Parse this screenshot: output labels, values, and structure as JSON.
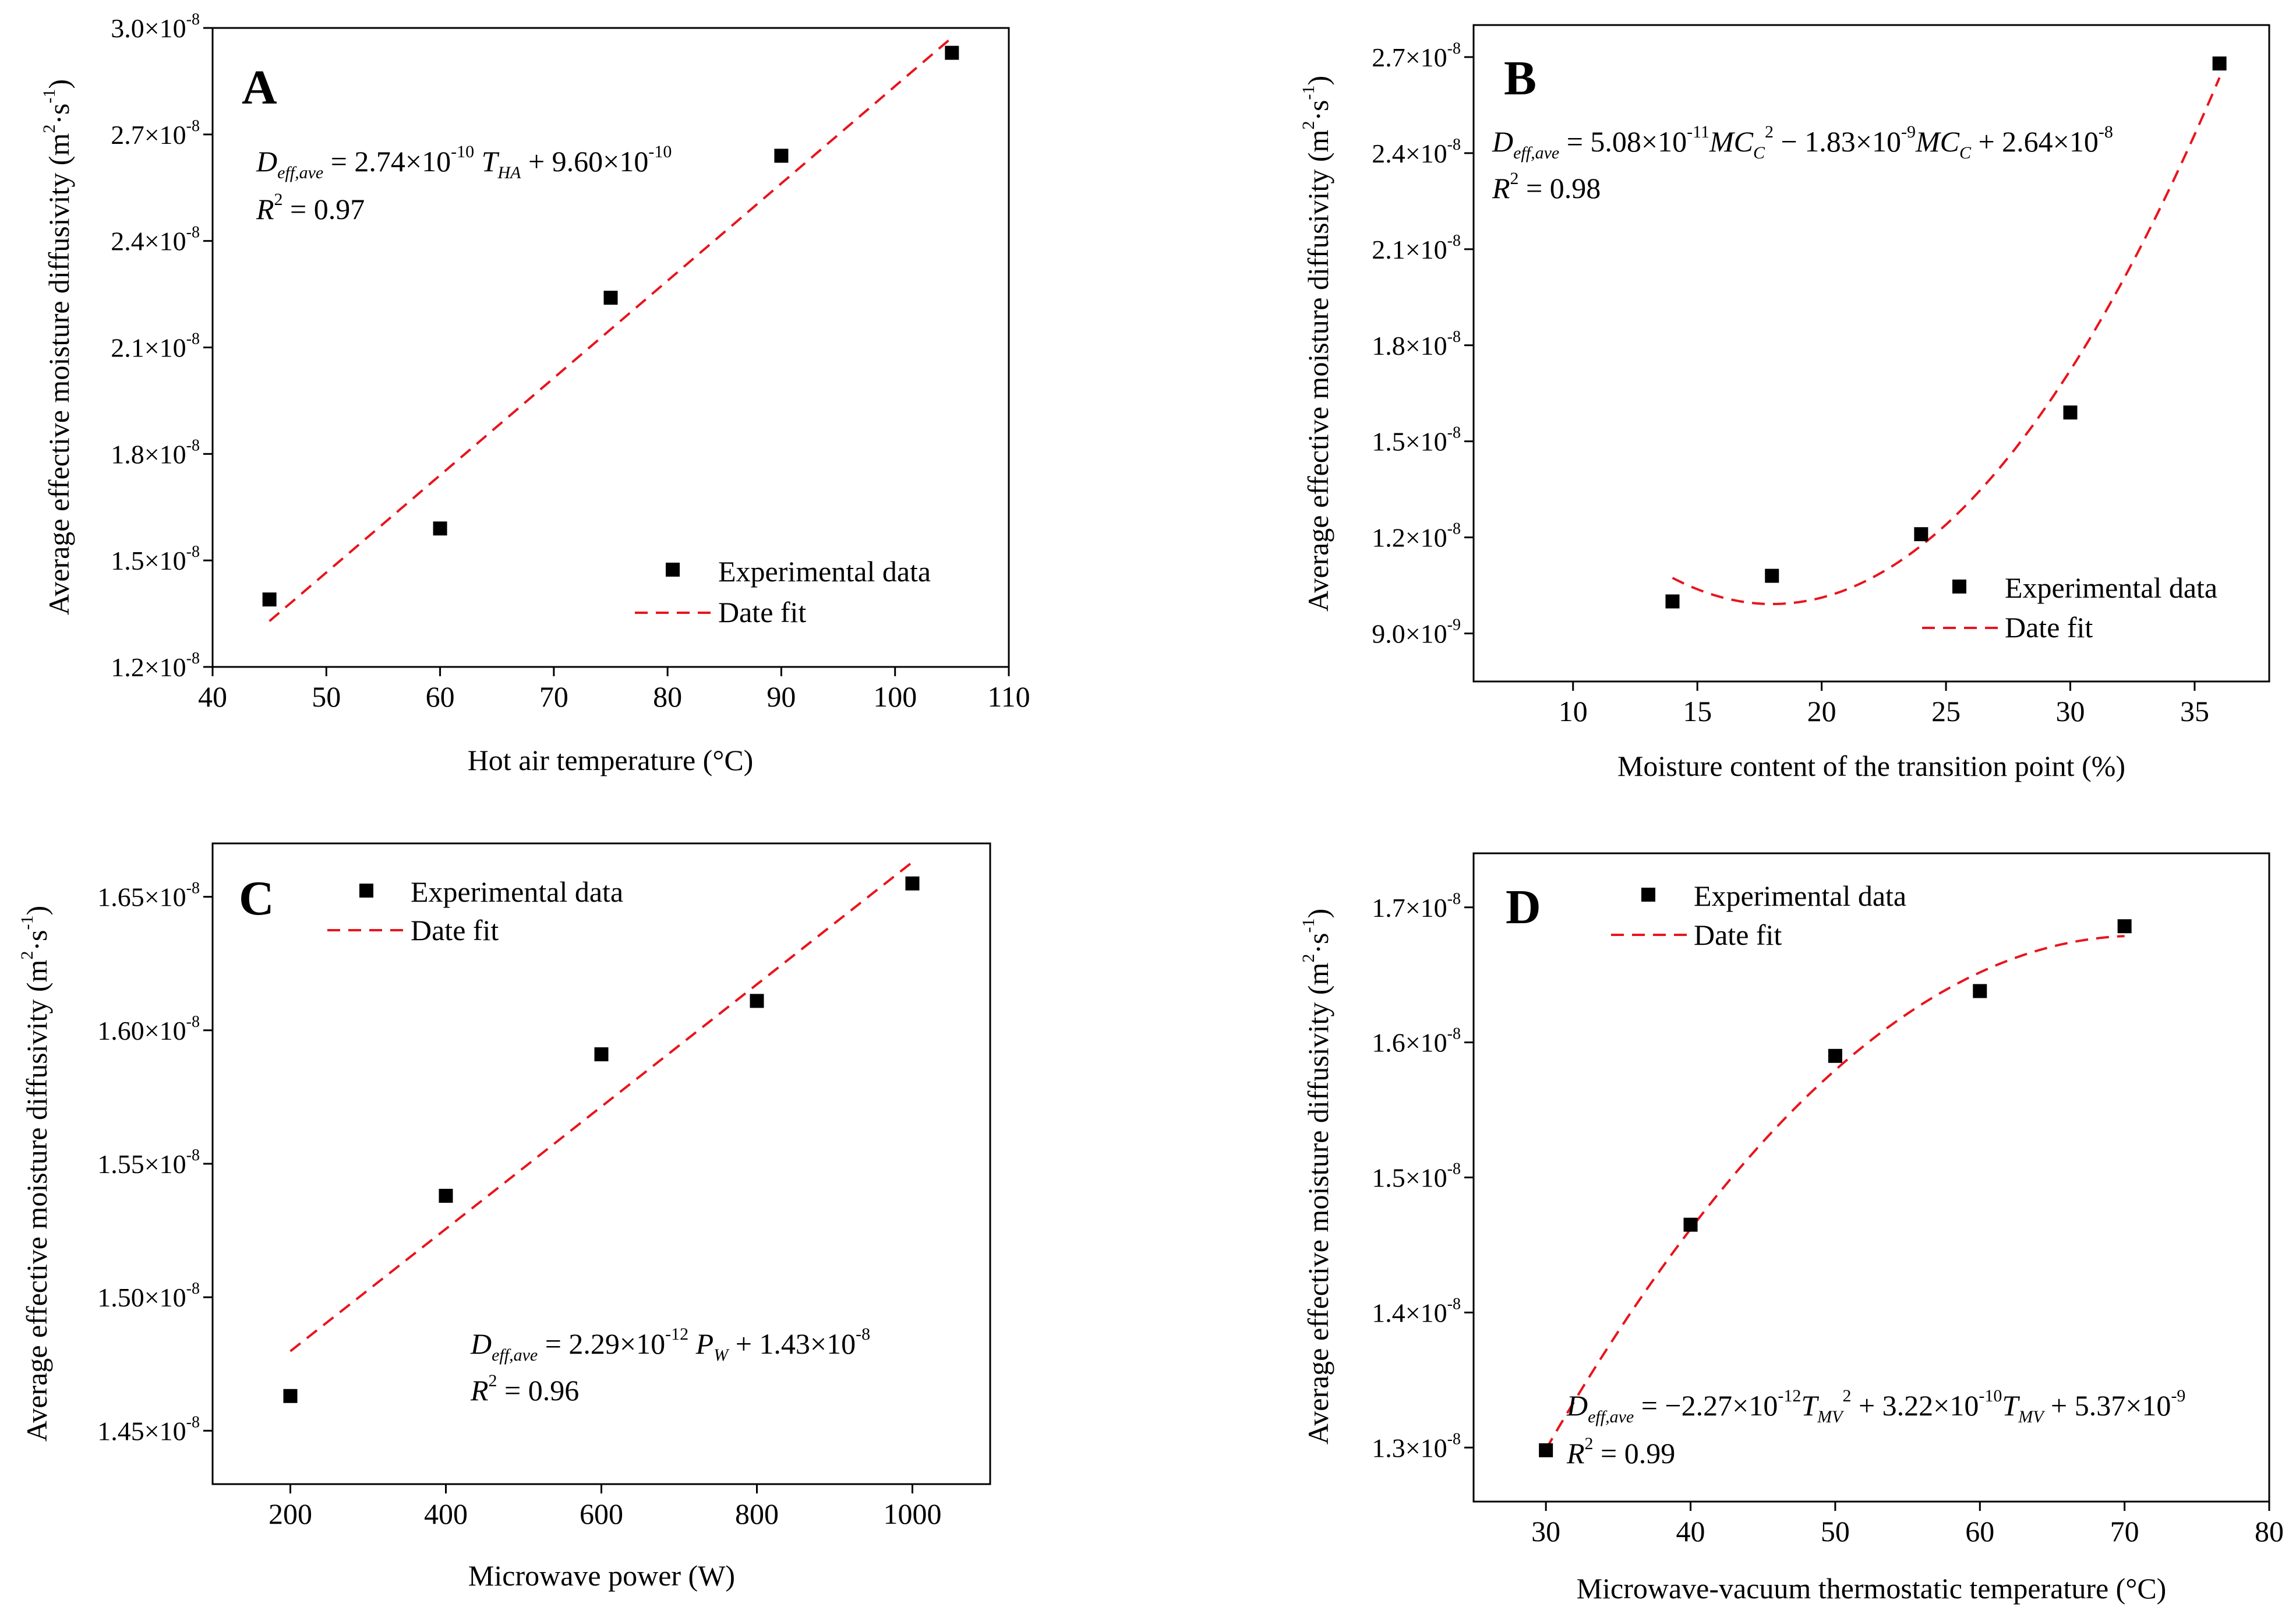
{
  "chart_data": [
    {
      "panel": "A",
      "type": "scatter",
      "title": "A",
      "xlabel": "Hot air temperature (°C)",
      "ylabel": "Average effective moisture diffusivity (m2·s-1)",
      "xlim": [
        40,
        110
      ],
      "ylim": [
        1.2e-08,
        3e-08
      ],
      "xticks": [
        "40",
        "50",
        "60",
        "70",
        "80",
        "90",
        "100",
        "110"
      ],
      "yticks": [
        "1.2×10-8",
        "1.5×10-8",
        "1.8×10-8",
        "2.1×10-8",
        "2.4×10-8",
        "2.7×10-8",
        "3.0×10-8"
      ],
      "series": [
        {
          "name": "Experimental data",
          "x": [
            45,
            60,
            75,
            90,
            105
          ],
          "y": [
            1.39e-08,
            1.59e-08,
            2.24e-08,
            2.64e-08,
            2.93e-08
          ]
        },
        {
          "name": "Date fit",
          "fit": "linear",
          "coef": [
            2.74e-10,
            9.6e-10
          ],
          "xrange": [
            45,
            105
          ]
        }
      ],
      "legend": "bottom-right",
      "equation": "Deff,ave = 2.74×10-10 THA + 9.60×10-10",
      "r2": "R2 = 0.97"
    },
    {
      "panel": "B",
      "type": "scatter",
      "title": "B",
      "xlabel": "Moisture content of the transition point (%)",
      "ylabel": "Average effective moisture diffusivity (m2·s-1)",
      "xlim": [
        6,
        38
      ],
      "ylim": [
        7.5e-09,
        2.8e-08
      ],
      "xticks": [
        "10",
        "15",
        "20",
        "25",
        "30",
        "35"
      ],
      "yticks": [
        "9.0×10-9",
        "1.2×10-8",
        "1.5×10-8",
        "1.8×10-8",
        "2.1×10-8",
        "2.4×10-8",
        "2.7×10-8"
      ],
      "series": [
        {
          "name": "Experimental data",
          "x": [
            14,
            18,
            24,
            30,
            36
          ],
          "y": [
            1e-08,
            1.08e-08,
            1.21e-08,
            1.59e-08,
            2.68e-08
          ]
        },
        {
          "name": "Date fit",
          "fit": "quadratic",
          "coef": [
            5.08e-11,
            -1.83e-09,
            2.64e-08
          ],
          "xrange": [
            14,
            36
          ]
        }
      ],
      "legend": "bottom-right",
      "equation": "Deff,ave = 5.08×10-11MCC2 − 1.83×10-9MCC + 2.64×10-8",
      "r2": "R2 = 0.98"
    },
    {
      "panel": "C",
      "type": "scatter",
      "title": "C",
      "xlabel": "Microwave power (W)",
      "ylabel": "Average effective moisture diffusivity (m2·s-1)",
      "xlim": [
        100,
        1100
      ],
      "ylim": [
        1.43e-08,
        1.67e-08
      ],
      "xticks": [
        "200",
        "400",
        "600",
        "800",
        "1000"
      ],
      "yticks": [
        "1.45×10-8",
        "1.50×10-8",
        "1.55×10-8",
        "1.60×10-8",
        "1.65×10-8"
      ],
      "series": [
        {
          "name": "Experimental data",
          "x": [
            200,
            400,
            600,
            800,
            1000
          ],
          "y": [
            1.463e-08,
            1.538e-08,
            1.591e-08,
            1.611e-08,
            1.655e-08
          ]
        },
        {
          "name": "Date fit",
          "fit": "linear",
          "coef": [
            2.29e-12,
            1.434e-08
          ],
          "xrange": [
            200,
            1000
          ]
        }
      ],
      "legend": "top-left",
      "equation": "Deff,ave = 2.29×10-12 PW + 1.43×10-8",
      "r2": "R2 = 0.96"
    },
    {
      "panel": "D",
      "type": "scatter",
      "title": "D",
      "xlabel": "Microwave-vacuum thermostatic temperature (°C)",
      "ylabel": "Average effective moisture diffusivity (m2·s-1)",
      "xlim": [
        25,
        80
      ],
      "ylim": [
        1.26e-08,
        1.74e-08
      ],
      "xticks": [
        "30",
        "40",
        "50",
        "60",
        "70",
        "80"
      ],
      "yticks": [
        "1.3×10-8",
        "1.4×10-8",
        "1.5×10-8",
        "1.6×10-8",
        "1.7×10-8"
      ],
      "series": [
        {
          "name": "Experimental data",
          "x": [
            30,
            40,
            50,
            60,
            70
          ],
          "y": [
            1.298e-08,
            1.465e-08,
            1.59e-08,
            1.638e-08,
            1.686e-08
          ]
        },
        {
          "name": "Date fit",
          "fit": "quadratic",
          "coef": [
            -2.27e-12,
            3.22e-10,
            5.37e-09
          ],
          "xrange": [
            30,
            70
          ]
        }
      ],
      "legend": "top-left",
      "equation": "Deff,ave = −2.27×10-12TMV2 + 3.22×10-10TMV + 5.37×10-9",
      "r2": "R2 = 0.99"
    }
  ]
}
